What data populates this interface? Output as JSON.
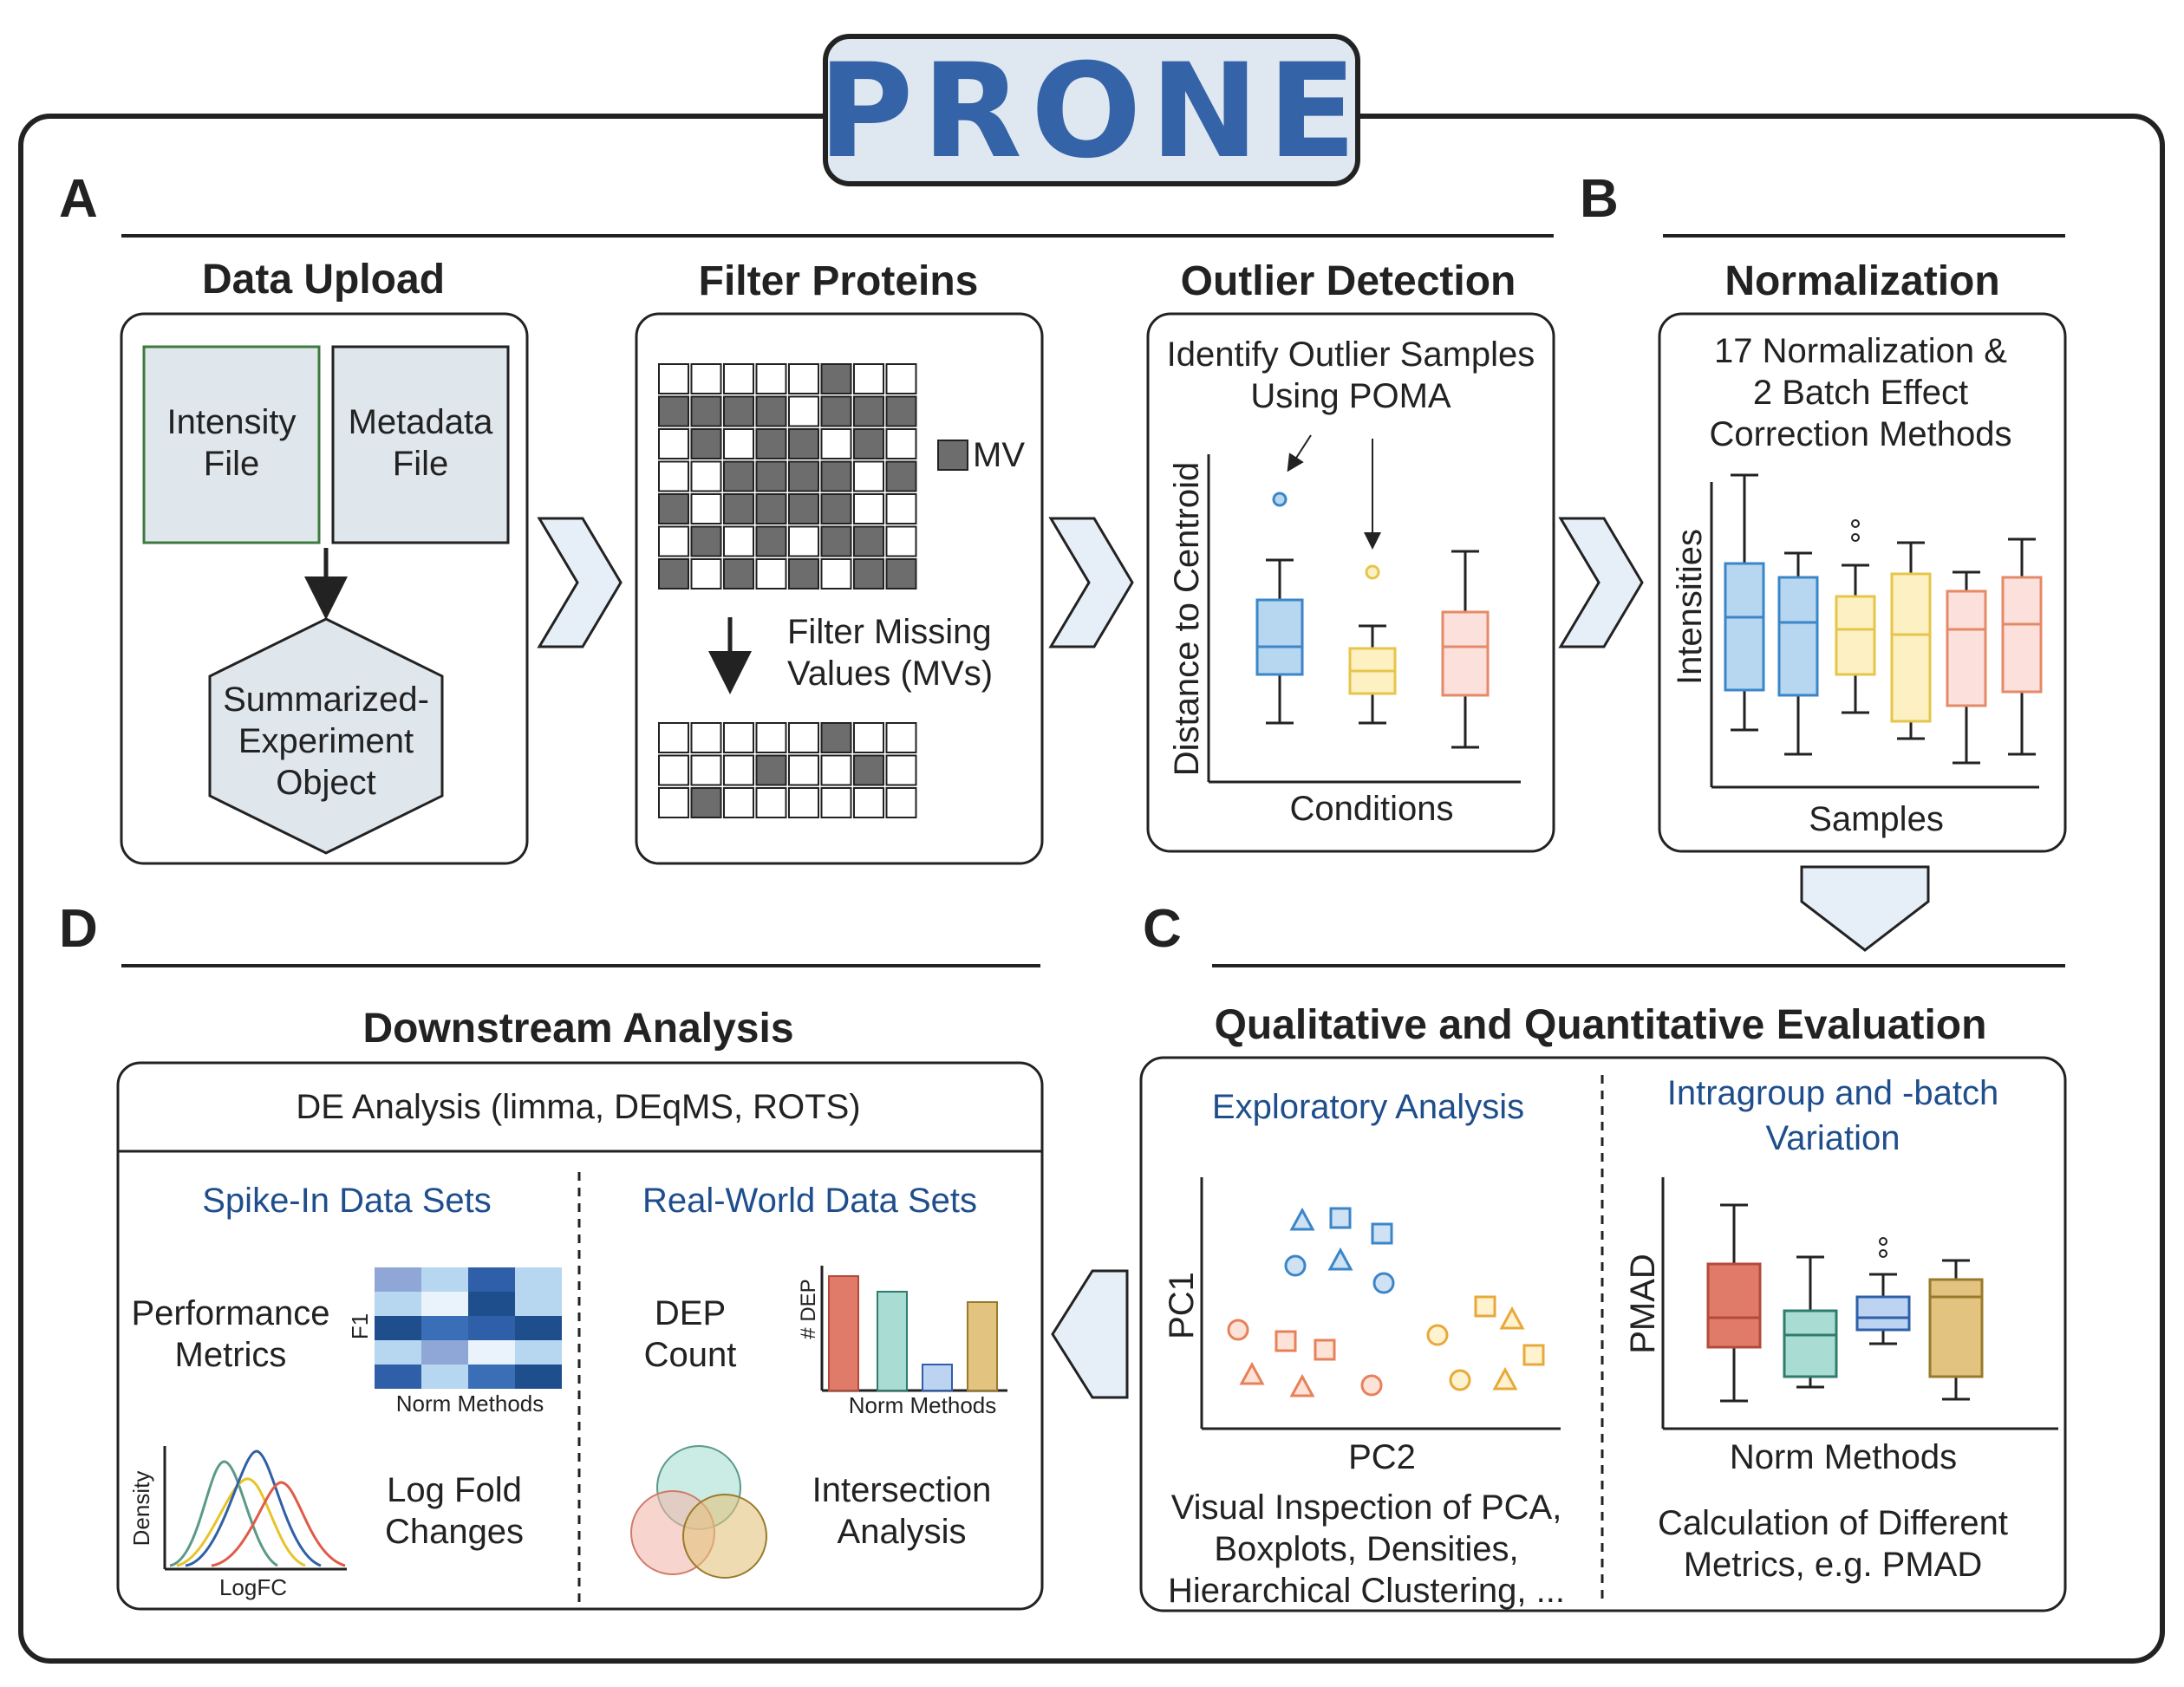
{
  "logo": {
    "text": "PRONE"
  },
  "panels": {
    "A": "A",
    "B": "B",
    "C": "C",
    "D": "D"
  },
  "data_upload": {
    "title": "Data Upload",
    "intensity_line1": "Intensity",
    "intensity_line2": "File",
    "metadata_line1": "Metadata",
    "metadata_line2": "File",
    "se_line1": "Summarized-",
    "se_line2": "Experiment",
    "se_line3": "Object"
  },
  "filter": {
    "title": "Filter Proteins",
    "legend": "MV",
    "text_line1": "Filter Missing",
    "text_line2": "Values (MVs)"
  },
  "outlier": {
    "title": "Outlier Detection",
    "text_line1": "Identify Outlier Samples",
    "text_line2": "Using POMA",
    "ylabel": "Distance to Centroid",
    "xlabel": "Conditions"
  },
  "normalization": {
    "title": "Normalization",
    "text_line1": "17 Normalization &",
    "text_line2": "2 Batch Effect",
    "text_line3": "Correction Methods",
    "ylabel": "Intensities",
    "xlabel": "Samples"
  },
  "evaluation": {
    "title": "Qualitative and Quantitative Evaluation",
    "exploratory": "Exploratory Analysis",
    "pc1": "PC1",
    "pc2": "PC2",
    "visual_line1": "Visual Inspection of PCA,",
    "visual_line2": "Boxplots, Densities,",
    "visual_line3": "Hierarchical Clustering, ...",
    "intragroup_line1": "Intragroup and -batch",
    "intragroup_line2": "Variation",
    "pmad": "PMAD",
    "norm_methods": "Norm Methods",
    "calc_line1": "Calculation of Different",
    "calc_line2": "Metrics, e.g. PMAD"
  },
  "downstream": {
    "title": "Downstream Analysis",
    "de": "DE Analysis (limma, DEqMS, ROTS)",
    "spike": "Spike-In Data Sets",
    "real": "Real-World Data Sets",
    "perf_line1": "Performance",
    "perf_line2": "Metrics",
    "f1": "F1",
    "norm_methods": "Norm Methods",
    "dep_line1": "DEP",
    "dep_line2": "Count",
    "dep_axis": "# DEP",
    "density": "Density",
    "logfc": "LogFC",
    "lfc_line1": "Log Fold",
    "lfc_line2": "Changes",
    "inter_line1": "Intersection",
    "inter_line2": "Analysis"
  },
  "colors": {
    "blue": "#1f4e8c",
    "box_blue": "#b7d6f0",
    "box_yellow": "#fdf1c4",
    "box_pink": "#fbe0dc",
    "red": "#e07b6a",
    "teal": "#a9ddd3",
    "gold": "#e2c37f",
    "grey_cell": "#6d6d6d"
  },
  "icons": [
    "chevron-right-icon",
    "chevron-down-icon",
    "chevron-left-icon",
    "down-arrow-icon"
  ]
}
